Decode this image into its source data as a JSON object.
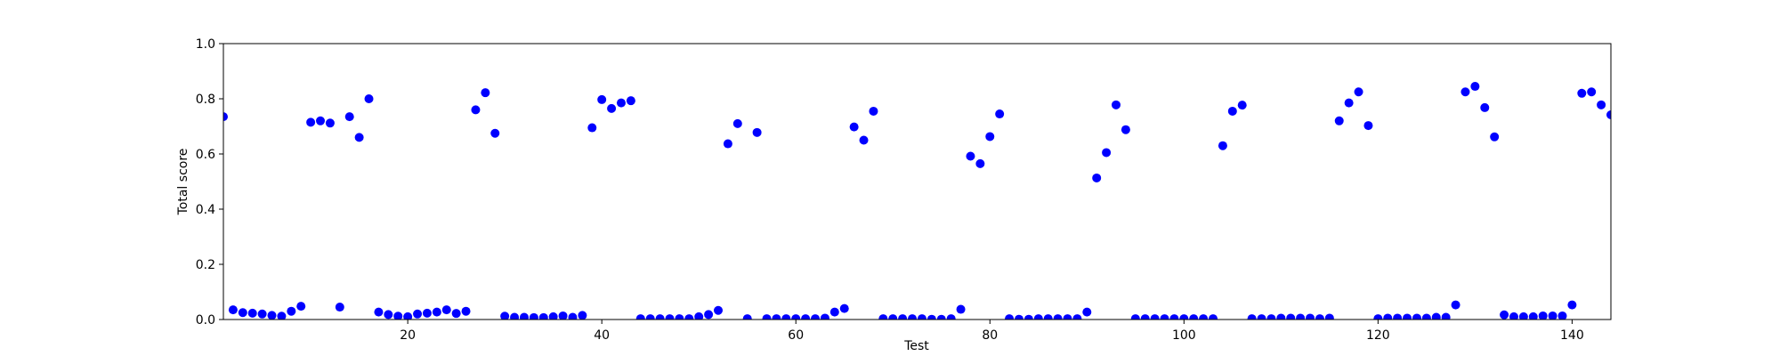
{
  "chart_data": {
    "type": "scatter",
    "xlabel": "Test",
    "ylabel": "Total score",
    "xlim": [
      1,
      144
    ],
    "ylim": [
      0,
      1.0
    ],
    "xticks": [
      20,
      40,
      60,
      80,
      100,
      120,
      140
    ],
    "xtick_labels": [
      "20",
      "40",
      "60",
      "80",
      "100",
      "120",
      "140"
    ],
    "yticks": [
      0.0,
      0.2,
      0.4,
      0.6,
      0.8,
      1.0
    ],
    "ytick_labels": [
      "0.0",
      "0.2",
      "0.4",
      "0.6",
      "0.8",
      "1.0"
    ],
    "grid": false,
    "marker_color": "#0000ff",
    "series": [
      {
        "x": [
          1,
          2,
          3,
          4,
          5,
          6,
          7,
          8,
          9,
          10,
          11,
          12,
          13,
          14,
          15,
          16,
          17,
          18,
          19,
          20,
          21,
          22,
          23,
          24,
          25,
          26,
          27,
          28,
          29,
          30,
          31,
          32,
          33,
          34,
          35,
          36,
          37,
          38,
          39,
          40,
          41,
          42,
          43,
          44,
          45,
          46,
          47,
          48,
          49,
          50,
          51,
          52,
          53,
          54,
          55,
          56,
          57,
          58,
          59,
          60,
          61,
          62,
          63,
          64,
          65,
          66,
          67,
          68,
          69,
          70,
          71,
          72,
          73,
          74,
          75,
          76,
          77,
          78,
          79,
          80,
          81,
          82,
          83,
          84,
          85,
          86,
          87,
          88,
          89,
          90,
          91,
          92,
          93,
          94,
          95,
          96,
          97,
          98,
          99,
          100,
          101,
          102,
          103,
          104,
          105,
          106,
          107,
          108,
          109,
          110,
          111,
          112,
          113,
          114,
          115,
          116,
          117,
          118,
          119,
          120,
          121,
          122,
          123,
          124,
          125,
          126,
          127,
          128,
          129,
          130,
          131,
          132,
          133,
          134,
          135,
          136,
          137,
          138,
          139,
          140,
          141,
          142,
          143,
          144
        ],
        "y": [
          0.735,
          0.035,
          0.025,
          0.023,
          0.02,
          0.015,
          0.012,
          0.03,
          0.048,
          0.715,
          0.72,
          0.712,
          0.045,
          0.735,
          0.66,
          0.8,
          0.027,
          0.018,
          0.012,
          0.01,
          0.02,
          0.023,
          0.027,
          0.035,
          0.022,
          0.03,
          0.76,
          0.822,
          0.675,
          0.012,
          0.008,
          0.008,
          0.007,
          0.007,
          0.01,
          0.013,
          0.008,
          0.015,
          0.695,
          0.797,
          0.765,
          0.785,
          0.793,
          0.003,
          0.003,
          0.003,
          0.003,
          0.003,
          0.003,
          0.01,
          0.018,
          0.033,
          0.637,
          0.71,
          0.003,
          0.678,
          0.003,
          0.003,
          0.003,
          0.003,
          0.003,
          0.003,
          0.005,
          0.027,
          0.04,
          0.698,
          0.65,
          0.755,
          0.003,
          0.003,
          0.003,
          0.003,
          0.003,
          0.001,
          0.001,
          0.003,
          0.037,
          0.592,
          0.565,
          0.663,
          0.745,
          0.003,
          0.001,
          0.001,
          0.003,
          0.003,
          0.003,
          0.003,
          0.003,
          0.027,
          0.513,
          0.605,
          0.778,
          0.688,
          0.003,
          0.003,
          0.003,
          0.003,
          0.003,
          0.003,
          0.003,
          0.003,
          0.003,
          0.63,
          0.755,
          0.777,
          0.003,
          0.003,
          0.003,
          0.005,
          0.005,
          0.005,
          0.005,
          0.003,
          0.005,
          0.72,
          0.785,
          0.825,
          0.703,
          0.003,
          0.005,
          0.005,
          0.005,
          0.005,
          0.005,
          0.008,
          0.008,
          0.053,
          0.825,
          0.845,
          0.768,
          0.662,
          0.017,
          0.01,
          0.01,
          0.01,
          0.013,
          0.013,
          0.013,
          0.053,
          0.82,
          0.825,
          0.778,
          0.742
        ]
      }
    ]
  }
}
